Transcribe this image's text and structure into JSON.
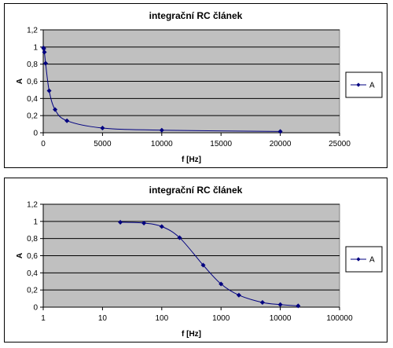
{
  "chart_data": [
    {
      "type": "line",
      "scale": "linear",
      "title": "integrační RC článek",
      "xlabel": "f [Hz]",
      "ylabel": "A",
      "xlim": [
        0,
        25000
      ],
      "ylim": [
        0,
        1.2
      ],
      "xticks": [
        0,
        5000,
        10000,
        15000,
        20000,
        25000
      ],
      "xtick_labels": [
        "0",
        "5000",
        "10000",
        "15000",
        "20000",
        "25000"
      ],
      "yticks": [
        0,
        0.2,
        0.4,
        0.6,
        0.8,
        1,
        1.2
      ],
      "ytick_labels": [
        "0",
        "0,2",
        "0,4",
        "0,6",
        "0,8",
        "1",
        "1,2"
      ],
      "grid": "horizontal",
      "legend_position": "right",
      "plot_bg": "#c0c0c0",
      "series_color": "#000080",
      "series": [
        {
          "name": "A",
          "x": [
            20,
            50,
            100,
            200,
            500,
            1000,
            2000,
            5000,
            10000,
            20000
          ],
          "y": [
            0.99,
            0.98,
            0.94,
            0.81,
            0.49,
            0.27,
            0.14,
            0.055,
            0.03,
            0.015
          ]
        }
      ]
    },
    {
      "type": "line",
      "scale": "log",
      "title": "integrační RC článek",
      "xlabel": "f [Hz]",
      "ylabel": "A",
      "xlim": [
        1,
        100000
      ],
      "ylim": [
        0,
        1.2
      ],
      "xticks": [
        1,
        10,
        100,
        1000,
        10000,
        100000
      ],
      "xtick_labels": [
        "1",
        "10",
        "100",
        "1000",
        "10000",
        "100000"
      ],
      "yticks": [
        0,
        0.2,
        0.4,
        0.6,
        0.8,
        1,
        1.2
      ],
      "ytick_labels": [
        "0",
        "0,2",
        "0,4",
        "0,6",
        "0,8",
        "1",
        "1,2"
      ],
      "grid": "horizontal",
      "legend_position": "right",
      "plot_bg": "#c0c0c0",
      "series_color": "#000080",
      "series": [
        {
          "name": "A",
          "x": [
            20,
            50,
            100,
            200,
            500,
            1000,
            2000,
            5000,
            10000,
            20000
          ],
          "y": [
            0.99,
            0.98,
            0.94,
            0.81,
            0.49,
            0.27,
            0.14,
            0.055,
            0.03,
            0.015
          ]
        }
      ]
    }
  ]
}
